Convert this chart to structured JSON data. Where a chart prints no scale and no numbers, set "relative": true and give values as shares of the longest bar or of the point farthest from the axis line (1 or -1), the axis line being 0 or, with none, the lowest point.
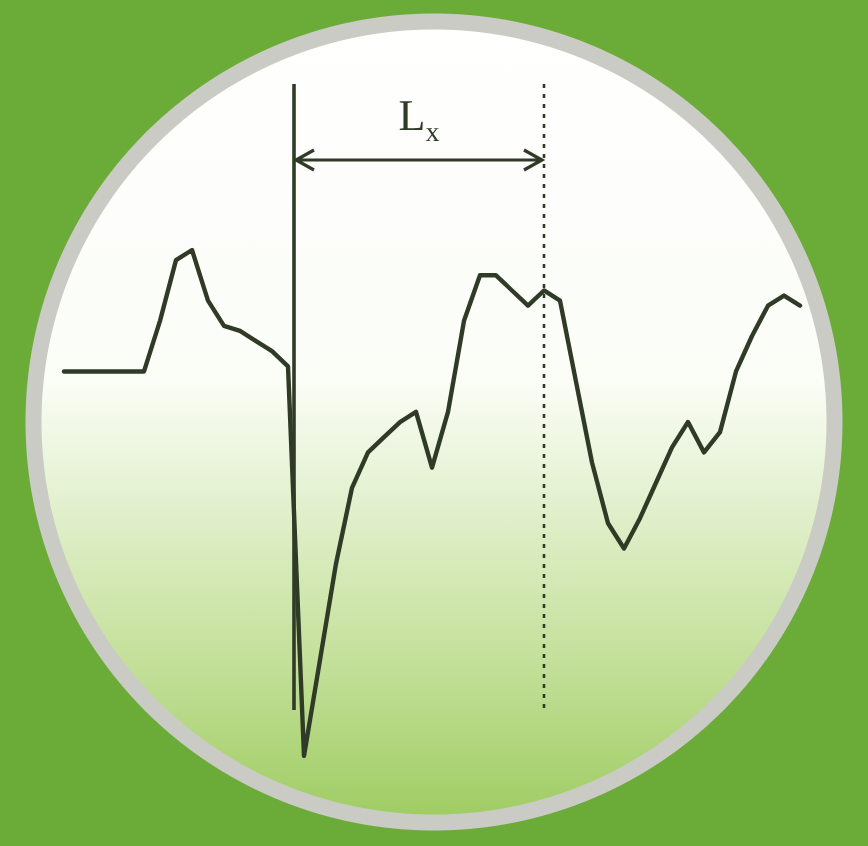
{
  "chart_data": {
    "type": "line",
    "relative": true,
    "tick_labels": false,
    "line_style": "solid",
    "categories": [
      null,
      null,
      null,
      null,
      null,
      null,
      null,
      null,
      null,
      null,
      null,
      null,
      null,
      null,
      null,
      null,
      null,
      null,
      null,
      null,
      null,
      null,
      null,
      null,
      null,
      null,
      null,
      null,
      null,
      null,
      null,
      null,
      null,
      null,
      null,
      null,
      null,
      null,
      null,
      null,
      null,
      null,
      null,
      null,
      null,
      null,
      null
    ],
    "series": [
      {
        "color": "#2f3b26",
        "values": [
          0.76,
          0.76,
          0.76,
          0.76,
          0.76,
          0.76,
          0.86,
          0.98,
          1,
          0.9,
          0.85,
          0.84,
          0.82,
          0.8,
          0.77,
          0,
          0.19,
          0.38,
          0.53,
          0.6,
          0.63,
          0.66,
          0.68,
          0.57,
          0.68,
          0.86,
          0.95,
          0.95,
          0.92,
          0.89,
          0.92,
          0.9,
          0.74,
          0.58,
          0.46,
          0.41,
          0.47,
          0.54,
          0.61,
          0.66,
          0.6,
          0.64,
          0.76,
          0.83,
          0.89,
          0.91,
          0.89
        ]
      }
    ],
    "annotations": [
      "L$_{x}$"
    ]
  }
}
